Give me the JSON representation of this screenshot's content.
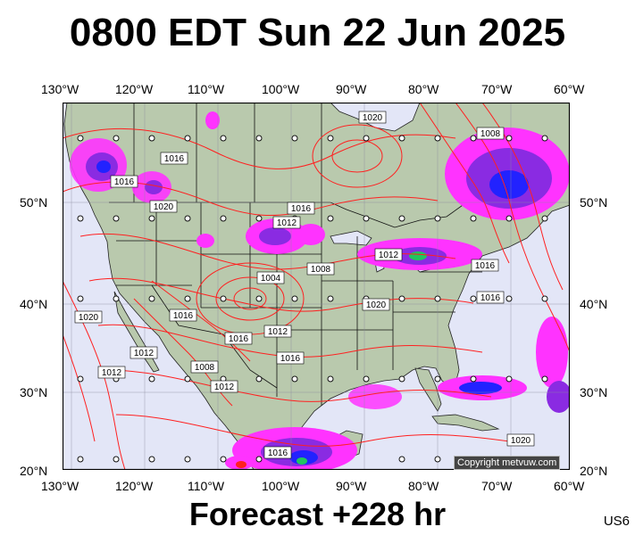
{
  "header": {
    "title": "0800 EDT Sun 22 Jun 2025",
    "forecast": "Forecast +228 hr",
    "region_code": "US6"
  },
  "copyright": "Copyright metvuw.com",
  "axes": {
    "longitudes": [
      "130°W",
      "120°W",
      "110°W",
      "100°W",
      "90°W",
      "80°W",
      "70°W",
      "60°W"
    ],
    "latitudes": [
      "50°N",
      "40°N",
      "30°N",
      "20°N"
    ]
  },
  "isobar_labels": [
    "1020",
    "1016",
    "1016",
    "1020",
    "1008",
    "1004",
    "1016",
    "1012",
    "1012",
    "1016",
    "1008",
    "1020",
    "1016",
    "1012",
    "1016",
    "1020",
    "1012",
    "1008",
    "1012",
    "1016",
    "1012",
    "1020",
    "1016",
    "1016"
  ],
  "colors": {
    "land": "#b9c9ad",
    "water": "#e3e6f7",
    "isobar": "#ff2020",
    "precip_light": "#ff33ff",
    "precip_mid": "#8a2be2",
    "precip_heavy": "#2222ff"
  }
}
